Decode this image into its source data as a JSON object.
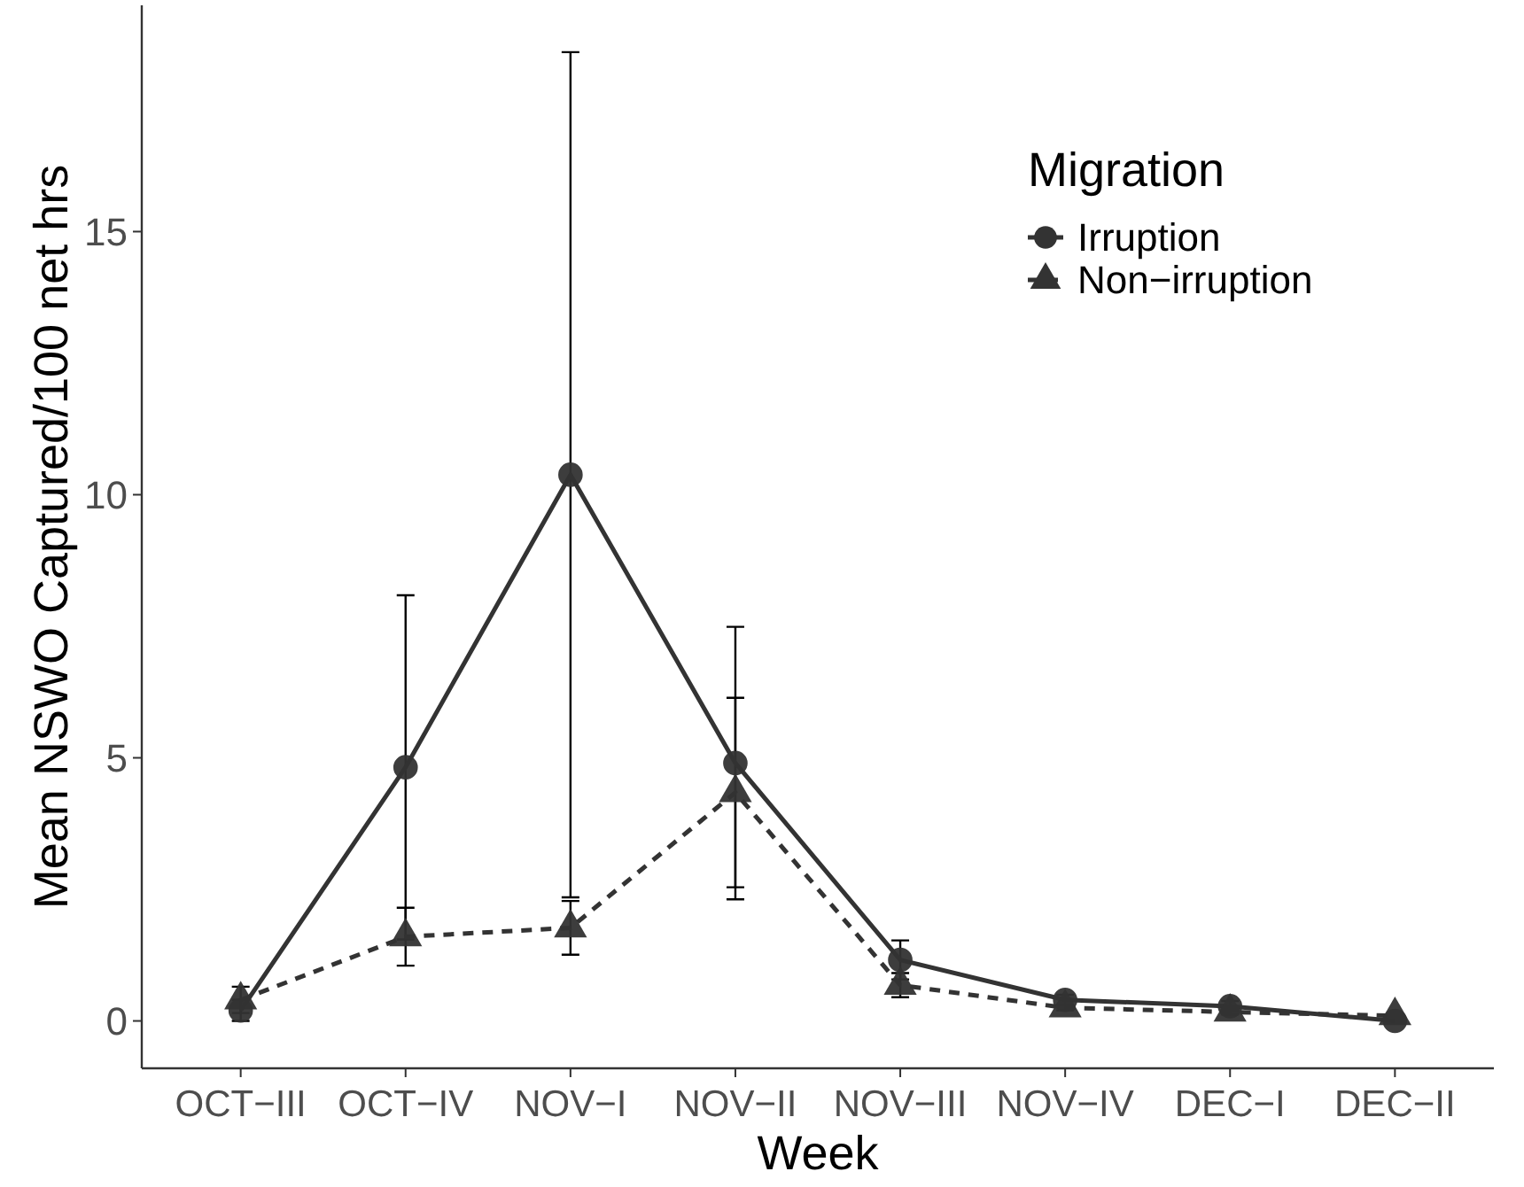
{
  "chart_data": {
    "type": "line",
    "xlabel": "Week",
    "ylabel": "Mean NSWO Captured/100 net hrs",
    "legend_title": "Migration",
    "legend": "top right",
    "grid": false,
    "categories": [
      "OCT−III",
      "OCT−IV",
      "NOV−I",
      "NOV−II",
      "NOV−III",
      "NOV−IV",
      "DEC−I",
      "DEC−II"
    ],
    "ylim": [
      -0.9,
      19.3
    ],
    "yticks": [
      0,
      5,
      10,
      15
    ],
    "series": [
      {
        "name": "Irruption",
        "color": "#333333",
        "marker": "circle",
        "line_style": "solid",
        "values": [
          0.2,
          4.82,
          10.38,
          4.9,
          1.16,
          0.4,
          0.28,
          0
        ],
        "errors": [
          0.2,
          3.27,
          8.03,
          2.59,
          0.37,
          0.1,
          0.1,
          null
        ]
      },
      {
        "name": "Non−irruption",
        "color": "#333333",
        "marker": "triangle",
        "line_style": "dashed",
        "values": [
          0.4,
          1.6,
          1.77,
          4.34,
          0.68,
          0.25,
          0.17,
          0.1
        ],
        "errors": [
          0.25,
          0.55,
          0.51,
          1.8,
          0.23,
          0.05,
          0.05,
          null
        ]
      }
    ]
  }
}
